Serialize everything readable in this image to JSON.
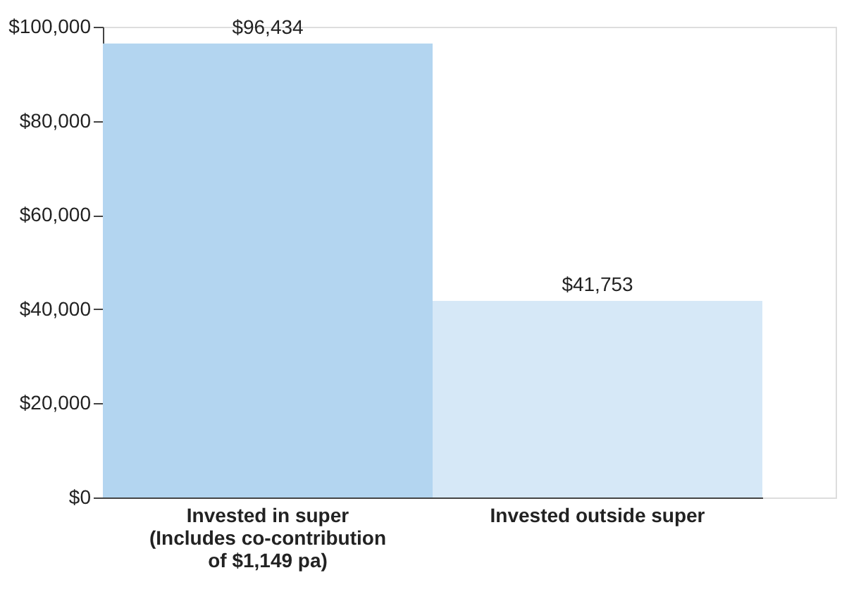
{
  "chart_data": {
    "type": "bar",
    "categories": [
      "Invested in super\n(Includes co-contribution\nof $1,149 pa)",
      "Invested outside super"
    ],
    "values": [
      96434,
      41753
    ],
    "colors": [
      "#b3d5f0",
      "#d6e8f7"
    ],
    "value_labels": [
      "$96,434",
      "$41,753"
    ],
    "ylim": [
      0,
      100000
    ],
    "yticks": [
      {
        "value": 0,
        "label": "$0"
      },
      {
        "value": 20000,
        "label": "$20,000"
      },
      {
        "value": 40000,
        "label": "$40,000"
      },
      {
        "value": 60000,
        "label": "$60,000"
      },
      {
        "value": 80000,
        "label": "$80,000"
      },
      {
        "value": 100000,
        "label": "$100,000"
      }
    ],
    "grid": false,
    "legend": false
  }
}
